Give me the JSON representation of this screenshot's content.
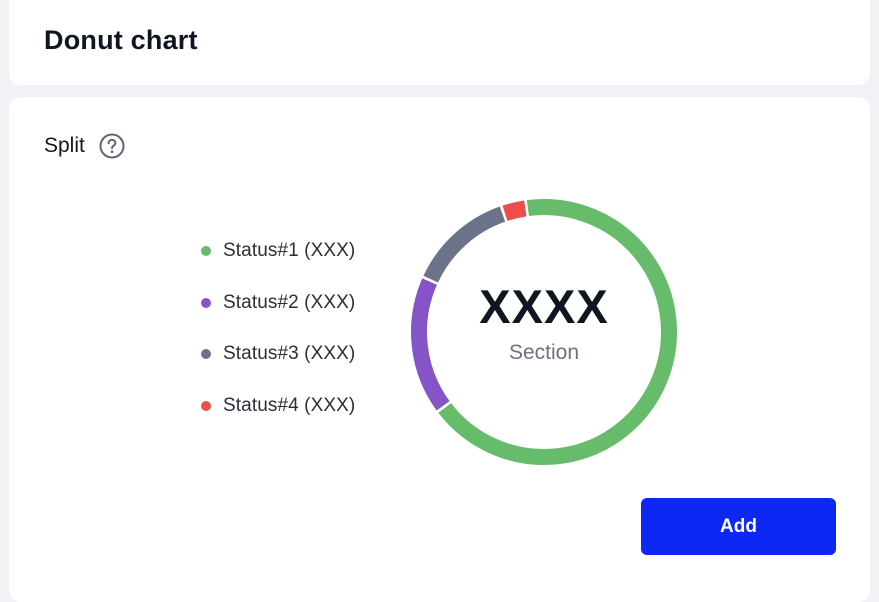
{
  "header": {
    "title": "Donut chart"
  },
  "panel": {
    "label": "Split",
    "help_icon": "question-circle-icon",
    "add_label": "Add"
  },
  "donut": {
    "value": "XXXX",
    "caption": "Section"
  },
  "legend": [
    {
      "label": "Status#1 (XXX)",
      "color": "#66bc6b"
    },
    {
      "label": "Status#2 (XXX)",
      "color": "#8555c8"
    },
    {
      "label": "Status#3 (XXX)",
      "color": "#6a7388"
    },
    {
      "label": "Status#4 (XXX)",
      "color": "#ee4d4d"
    }
  ],
  "chart_data": {
    "type": "pie",
    "categories": [
      "Status#1 (XXX)",
      "Status#2 (XXX)",
      "Status#3 (XXX)",
      "Status#4 (XXX)"
    ],
    "values": [
      67,
      17,
      13,
      3
    ],
    "colors": [
      "#66bc6b",
      "#8555c8",
      "#6a7388",
      "#ee4d4d"
    ],
    "start_angle_deg": -8,
    "legend_position": "left"
  }
}
